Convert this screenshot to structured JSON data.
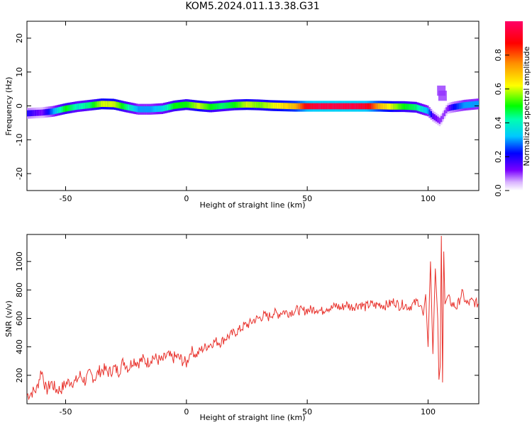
{
  "title": "KOM5.2024.011.13.38.G31",
  "chart_data": [
    {
      "type": "heatmap",
      "xlabel": "Height of straight line (km)",
      "ylabel": "Frequency (Hz)",
      "xlim": [
        -66,
        121
      ],
      "ylim": [
        -25,
        25
      ],
      "x_ticks": [
        -50,
        0,
        50,
        100
      ],
      "y_ticks": [
        -20,
        -10,
        0,
        10,
        20
      ],
      "colorbar": {
        "label": "Normalized spectral amplitude",
        "range": [
          0,
          1
        ],
        "ticks": [
          0.0,
          0.2,
          0.4,
          0.6,
          0.8
        ],
        "colormap": "rainbow (violet-blue-cyan-green-yellow-orange-red-magenta)"
      },
      "track": {
        "x": [
          -66,
          -60,
          -55,
          -50,
          -45,
          -40,
          -35,
          -30,
          -25,
          -20,
          -15,
          -10,
          -5,
          0,
          5,
          10,
          15,
          20,
          25,
          30,
          35,
          40,
          45,
          50,
          55,
          60,
          65,
          70,
          75,
          80,
          85,
          90,
          95,
          100,
          102,
          105,
          108,
          110,
          115,
          121
        ],
        "frequency": [
          -2.2,
          -2.0,
          -1.6,
          -0.8,
          -0.2,
          0.2,
          0.6,
          0.5,
          -0.3,
          -1.0,
          -1.0,
          -0.8,
          0.0,
          0.4,
          0.0,
          -0.3,
          0.0,
          0.3,
          0.4,
          0.3,
          0.1,
          0.0,
          -0.1,
          -0.1,
          -0.1,
          -0.1,
          -0.1,
          -0.1,
          -0.1,
          -0.1,
          -0.2,
          -0.2,
          -0.4,
          -1.5,
          -3.0,
          -4.5,
          -0.8,
          -0.4,
          0.2,
          0.6
        ],
        "amplitude": [
          0.2,
          0.12,
          0.3,
          0.5,
          0.4,
          0.45,
          0.6,
          0.6,
          0.45,
          0.3,
          0.3,
          0.35,
          0.5,
          0.5,
          0.6,
          0.5,
          0.45,
          0.5,
          0.6,
          0.55,
          0.6,
          0.65,
          0.7,
          0.9,
          0.95,
          0.95,
          0.95,
          0.95,
          0.9,
          0.7,
          0.6,
          0.5,
          0.45,
          0.3,
          0.15,
          0.1,
          0.1,
          0.2,
          0.3,
          0.3
        ]
      },
      "spurs": [
        {
          "x": 106,
          "frequency": 3.0
        },
        {
          "x": 105.5,
          "frequency": 4.5
        }
      ]
    },
    {
      "type": "line",
      "xlabel": "Height of straight line (km)",
      "ylabel": "SNR (v/v)",
      "xlim": [
        -66,
        121
      ],
      "ylim": [
        0,
        1190
      ],
      "x_ticks": [
        -50,
        0,
        50,
        100
      ],
      "y_ticks": [
        200,
        400,
        600,
        800,
        1000
      ],
      "color": "#e8322c",
      "series": [
        {
          "x": [
            -66,
            -62,
            -60,
            -58,
            -56,
            -54,
            -52,
            -50,
            -48,
            -46,
            -44,
            -42,
            -40,
            -38,
            -36,
            -34,
            -32,
            -30,
            -28,
            -26,
            -24,
            -22,
            -20,
            -18,
            -16,
            -14,
            -12,
            -10,
            -8,
            -6,
            -4,
            -2,
            0,
            2,
            4,
            6,
            8,
            10,
            12,
            14,
            16,
            18,
            20,
            22,
            24,
            26,
            28,
            30,
            32,
            34,
            36,
            38,
            40,
            42,
            44,
            46,
            48,
            50,
            52,
            54,
            56,
            58,
            60,
            62,
            64,
            66,
            68,
            70,
            72,
            74,
            76,
            78,
            80,
            82,
            84,
            86,
            88,
            90,
            92,
            94,
            96,
            97,
            98,
            99,
            100,
            101,
            102,
            103,
            104,
            104.5,
            105,
            105.5,
            106,
            106.5,
            107,
            108,
            110,
            112,
            114,
            116,
            118,
            121
          ],
          "values": [
            60,
            100,
            240,
            90,
            150,
            100,
            100,
            140,
            160,
            150,
            200,
            160,
            210,
            180,
            230,
            240,
            220,
            250,
            230,
            300,
            250,
            310,
            290,
            310,
            290,
            330,
            310,
            300,
            340,
            320,
            330,
            310,
            280,
            380,
            340,
            380,
            400,
            420,
            440,
            430,
            460,
            480,
            500,
            520,
            550,
            560,
            590,
            600,
            620,
            610,
            640,
            630,
            650,
            640,
            650,
            660,
            650,
            660,
            660,
            670,
            650,
            680,
            670,
            690,
            670,
            700,
            680,
            690,
            700,
            680,
            700,
            690,
            700,
            690,
            700,
            720,
            690,
            700,
            680,
            700,
            720,
            690,
            620,
            770,
            400,
            1000,
            350,
            950,
            600,
            170,
            260,
            1180,
            150,
            1070,
            700,
            750,
            700,
            680,
            780,
            700,
            720,
            700
          ]
        }
      ]
    }
  ]
}
